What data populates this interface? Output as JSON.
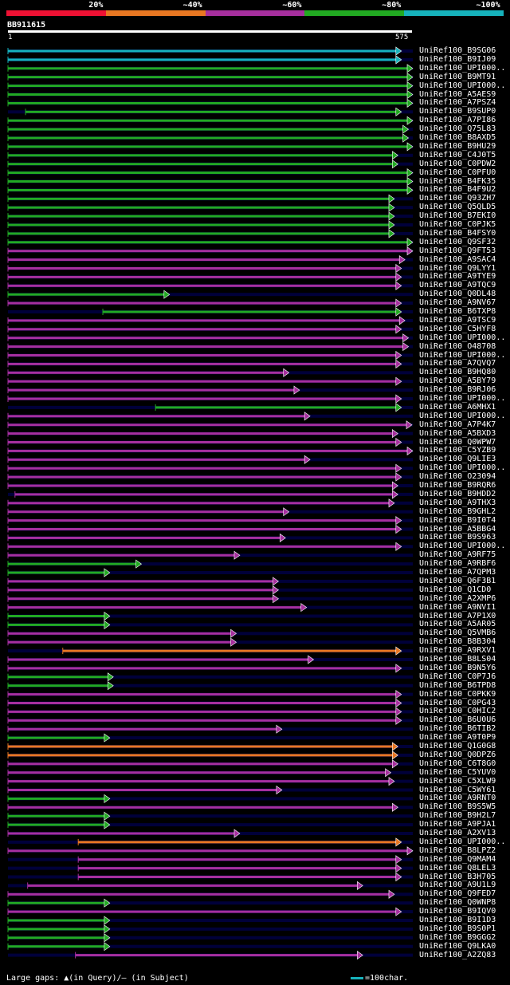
{
  "legend": {
    "items": [
      {
        "label": "20%",
        "color": "#ee1133"
      },
      {
        "label": "~40%",
        "color": "#e87722"
      },
      {
        "label": "~60%",
        "color": "#a62f9e"
      },
      {
        "label": "~80%",
        "color": "#22aa22"
      },
      {
        "label": "~100%",
        "color": "#16b2bc"
      }
    ]
  },
  "query": {
    "id": "BB911615",
    "start": "1",
    "end": "575",
    "length": 575
  },
  "footer": {
    "gaps_text": "Large gaps: ▲(in Query)/– (in Subject)",
    "scale_text": "=100char.",
    "scale_color": "#16b2bc"
  },
  "hits": [
    {
      "name": "UniRef100_B9SG06",
      "color": "cyan",
      "start": 0,
      "end": 560
    },
    {
      "name": "UniRef100_B9IJ09",
      "color": "cyan",
      "start": 0,
      "end": 560
    },
    {
      "name": "UniRef100_UPI000..",
      "color": "green",
      "start": 0,
      "end": 585
    },
    {
      "name": "UniRef100_B9MT91",
      "color": "green",
      "start": 0,
      "end": 585
    },
    {
      "name": "UniRef100_UPI000..",
      "color": "green",
      "start": 0,
      "end": 585
    },
    {
      "name": "UniRef100_A5AES9",
      "color": "green",
      "start": 0,
      "end": 585
    },
    {
      "name": "UniRef100_A7PSZ4",
      "color": "green",
      "start": 0,
      "end": 585
    },
    {
      "name": "UniRef100_B9SUP0",
      "color": "green",
      "start": 25,
      "end": 560
    },
    {
      "name": "UniRef100_A7PI86",
      "color": "green",
      "start": 0,
      "end": 585
    },
    {
      "name": "UniRef100_Q75L83",
      "color": "green",
      "start": 0,
      "end": 570
    },
    {
      "name": "UniRef100_B8AXD5",
      "color": "green",
      "start": 0,
      "end": 570
    },
    {
      "name": "UniRef100_B9HU29",
      "color": "green",
      "start": 0,
      "end": 585
    },
    {
      "name": "UniRef100_C4J0T5",
      "color": "green",
      "start": 0,
      "end": 555
    },
    {
      "name": "UniRef100_C0PDW2",
      "color": "green",
      "start": 0,
      "end": 555
    },
    {
      "name": "UniRef100_C0PFU0",
      "color": "green",
      "start": 0,
      "end": 580
    },
    {
      "name": "UniRef100_B4FK35",
      "color": "green",
      "start": 0,
      "end": 580
    },
    {
      "name": "UniRef100_B4F9U2",
      "color": "green",
      "start": 0,
      "end": 580
    },
    {
      "name": "UniRef100_Q93ZH7",
      "color": "green",
      "start": 0,
      "end": 550
    },
    {
      "name": "UniRef100_Q5QLD5",
      "color": "green",
      "start": 0,
      "end": 550
    },
    {
      "name": "UniRef100_B7EKI0",
      "color": "green",
      "start": 0,
      "end": 550
    },
    {
      "name": "UniRef100_C0PJK5",
      "color": "green",
      "start": 0,
      "end": 550
    },
    {
      "name": "UniRef100_B4FSY0",
      "color": "green",
      "start": 0,
      "end": 550
    },
    {
      "name": "UniRef100_Q9SF32",
      "color": "green",
      "start": 0,
      "end": 580
    },
    {
      "name": "UniRef100_Q9FT53",
      "color": "magenta",
      "start": 0,
      "end": 585
    },
    {
      "name": "UniRef100_A9SAC4",
      "color": "magenta",
      "start": 0,
      "end": 565
    },
    {
      "name": "UniRef100_Q9LYY1",
      "color": "magenta",
      "start": 0,
      "end": 560
    },
    {
      "name": "UniRef100_A9TYE9",
      "color": "magenta",
      "start": 0,
      "end": 560
    },
    {
      "name": "UniRef100_A9TQC9",
      "color": "magenta",
      "start": 0,
      "end": 560
    },
    {
      "name": "UniRef100_Q0DL48",
      "color": "green",
      "start": 0,
      "end": 230
    },
    {
      "name": "UniRef100_A9NV67",
      "color": "magenta",
      "start": 0,
      "end": 560
    },
    {
      "name": "UniRef100_B6TXP8",
      "color": "green",
      "start": 135,
      "end": 560
    },
    {
      "name": "UniRef100_A9TSC9",
      "color": "magenta",
      "start": 0,
      "end": 565
    },
    {
      "name": "UniRef100_C5HYF8",
      "color": "magenta",
      "start": 0,
      "end": 560
    },
    {
      "name": "UniRef100_UPI000..",
      "color": "magenta",
      "start": 0,
      "end": 570
    },
    {
      "name": "UniRef100_O48708",
      "color": "magenta",
      "start": 0,
      "end": 570
    },
    {
      "name": "UniRef100_UPI000..",
      "color": "magenta",
      "start": 0,
      "end": 560
    },
    {
      "name": "UniRef100_A7QVQ7",
      "color": "magenta",
      "start": 0,
      "end": 560
    },
    {
      "name": "UniRef100_B9HQ80",
      "color": "magenta",
      "start": 0,
      "end": 400
    },
    {
      "name": "UniRef100_A5BY79",
      "color": "magenta",
      "start": 0,
      "end": 560
    },
    {
      "name": "UniRef100_B9RJ06",
      "color": "magenta",
      "start": 0,
      "end": 415
    },
    {
      "name": "UniRef100_UPI000..",
      "color": "magenta",
      "start": 0,
      "end": 560
    },
    {
      "name": "UniRef100_A6MHX1",
      "color": "green",
      "start": 210,
      "end": 560
    },
    {
      "name": "UniRef100_UPI000..",
      "color": "magenta",
      "start": 0,
      "end": 430
    },
    {
      "name": "UniRef100_A7P4K7",
      "color": "magenta",
      "start": 0,
      "end": 575
    },
    {
      "name": "UniRef100_A5BXD3",
      "color": "magenta",
      "start": 0,
      "end": 555
    },
    {
      "name": "UniRef100_Q0WPW7",
      "color": "magenta",
      "start": 0,
      "end": 560
    },
    {
      "name": "UniRef100_C5YZB9",
      "color": "magenta",
      "start": 0,
      "end": 585
    },
    {
      "name": "UniRef100_Q9LIE3",
      "color": "magenta",
      "start": 0,
      "end": 430
    },
    {
      "name": "UniRef100_UPI000..",
      "color": "magenta",
      "start": 0,
      "end": 560
    },
    {
      "name": "UniRef100_O23094",
      "color": "magenta",
      "start": 0,
      "end": 560
    },
    {
      "name": "UniRef100_B9RQR6",
      "color": "magenta",
      "start": 0,
      "end": 555
    },
    {
      "name": "UniRef100_B9HDD2",
      "color": "magenta",
      "start": 10,
      "end": 555
    },
    {
      "name": "UniRef100_A9THX3",
      "color": "magenta",
      "start": 0,
      "end": 550
    },
    {
      "name": "UniRef100_B9GHL2",
      "color": "magenta",
      "start": 0,
      "end": 400
    },
    {
      "name": "UniRef100_B9I0T4",
      "color": "magenta",
      "start": 0,
      "end": 560
    },
    {
      "name": "UniRef100_A5BBG4",
      "color": "magenta",
      "start": 0,
      "end": 560
    },
    {
      "name": "UniRef100_B9S963",
      "color": "magenta",
      "start": 0,
      "end": 395
    },
    {
      "name": "UniRef100_UPI000..",
      "color": "magenta",
      "start": 0,
      "end": 560
    },
    {
      "name": "UniRef100_A9RF75",
      "color": "magenta",
      "start": 0,
      "end": 330
    },
    {
      "name": "UniRef100_A9RBF6",
      "color": "green",
      "start": 0,
      "end": 190
    },
    {
      "name": "UniRef100_A7QPM3",
      "color": "green",
      "start": 0,
      "end": 145
    },
    {
      "name": "UniRef100_Q6F3B1",
      "color": "magenta",
      "start": 0,
      "end": 385
    },
    {
      "name": "UniRef100_Q1CD0",
      "color": "magenta",
      "start": 0,
      "end": 385
    },
    {
      "name": "UniRef100_A2XMP6",
      "color": "magenta",
      "start": 0,
      "end": 385
    },
    {
      "name": "UniRef100_A9NVI1",
      "color": "magenta",
      "start": 0,
      "end": 425
    },
    {
      "name": "UniRef100_A7P1X0",
      "color": "green",
      "start": 0,
      "end": 145
    },
    {
      "name": "UniRef100_A5AR05",
      "color": "green",
      "start": 0,
      "end": 145
    },
    {
      "name": "UniRef100_Q5VMB6",
      "color": "magenta",
      "start": 0,
      "end": 325
    },
    {
      "name": "UniRef100_B8B304",
      "color": "magenta",
      "start": 0,
      "end": 325
    },
    {
      "name": "UniRef100_A9RXV1",
      "color": "orange",
      "start": 78,
      "end": 560
    },
    {
      "name": "UniRef100_B8LS04",
      "color": "magenta",
      "start": 0,
      "end": 435
    },
    {
      "name": "UniRef100_B9N5Y6",
      "color": "magenta",
      "start": 0,
      "end": 560
    },
    {
      "name": "UniRef100_C0P7J6",
      "color": "green",
      "start": 0,
      "end": 150
    },
    {
      "name": "UniRef100_B6TPD8",
      "color": "green",
      "start": 0,
      "end": 150
    },
    {
      "name": "UniRef100_C0PKK9",
      "color": "magenta",
      "start": 0,
      "end": 560
    },
    {
      "name": "UniRef100_C0PG43",
      "color": "magenta",
      "start": 0,
      "end": 560
    },
    {
      "name": "UniRef100_C0HIC2",
      "color": "magenta",
      "start": 0,
      "end": 560
    },
    {
      "name": "UniRef100_B6U0U6",
      "color": "magenta",
      "start": 0,
      "end": 560
    },
    {
      "name": "UniRef100_B6TIB2",
      "color": "magenta",
      "start": 0,
      "end": 390
    },
    {
      "name": "UniRef100_A9T0P9",
      "color": "green",
      "start": 0,
      "end": 145
    },
    {
      "name": "UniRef100_Q1G0G8",
      "color": "orange",
      "start": 0,
      "end": 555
    },
    {
      "name": "UniRef100_Q0DPZ6",
      "color": "orange",
      "start": 0,
      "end": 555
    },
    {
      "name": "UniRef100_C6T8G0",
      "color": "magenta",
      "start": 0,
      "end": 555
    },
    {
      "name": "UniRef100_C5YUV0",
      "color": "magenta",
      "start": 0,
      "end": 545
    },
    {
      "name": "UniRef100_C5XLW9",
      "color": "magenta",
      "start": 0,
      "end": 550
    },
    {
      "name": "UniRef100_C5WY61",
      "color": "magenta",
      "start": 0,
      "end": 390
    },
    {
      "name": "UniRef100_A9RNT0",
      "color": "green",
      "start": 0,
      "end": 145
    },
    {
      "name": "UniRef100_B9S5W5",
      "color": "magenta",
      "start": 0,
      "end": 555
    },
    {
      "name": "UniRef100_B9H2L7",
      "color": "green",
      "start": 0,
      "end": 145
    },
    {
      "name": "UniRef100_A9PJA1",
      "color": "green",
      "start": 0,
      "end": 145
    },
    {
      "name": "UniRef100_A2XV13",
      "color": "magenta",
      "start": 0,
      "end": 330
    },
    {
      "name": "UniRef100_UPI000..",
      "color": "orange",
      "start": 100,
      "end": 560
    },
    {
      "name": "UniRef100_B8LPZ2",
      "color": "magenta",
      "start": 0,
      "end": 585
    },
    {
      "name": "UniRef100_Q9MAM4",
      "color": "magenta",
      "start": 100,
      "end": 560
    },
    {
      "name": "UniRef100_Q8LEL3",
      "color": "magenta",
      "start": 100,
      "end": 560
    },
    {
      "name": "UniRef100_B3H705",
      "color": "magenta",
      "start": 100,
      "end": 560
    },
    {
      "name": "UniRef100_A9U1L9",
      "color": "magenta",
      "start": 28,
      "end": 505
    },
    {
      "name": "UniRef100_Q9FED7",
      "color": "magenta",
      "start": 0,
      "end": 550
    },
    {
      "name": "UniRef100_Q0WNP8",
      "color": "green",
      "start": 0,
      "end": 145
    },
    {
      "name": "UniRef100_B9IQV0",
      "color": "magenta",
      "start": 0,
      "end": 560
    },
    {
      "name": "UniRef100_B9I1D3",
      "color": "green",
      "start": 0,
      "end": 145
    },
    {
      "name": "UniRef100_B9S0P1",
      "color": "green",
      "start": 0,
      "end": 145
    },
    {
      "name": "UniRef100_B9GGG2",
      "color": "green",
      "start": 0,
      "end": 145
    },
    {
      "name": "UniRef100_Q9LKA0",
      "color": "green",
      "start": 0,
      "end": 145
    },
    {
      "name": "UniRef100_A2ZQ83",
      "color": "magenta",
      "start": 96,
      "end": 505
    }
  ],
  "colors": {
    "cyan": "#16b2bc",
    "green": "#22aa22",
    "magenta": "#a62f9e",
    "orange": "#e87722",
    "background": "#000000",
    "track": "#00003a"
  }
}
